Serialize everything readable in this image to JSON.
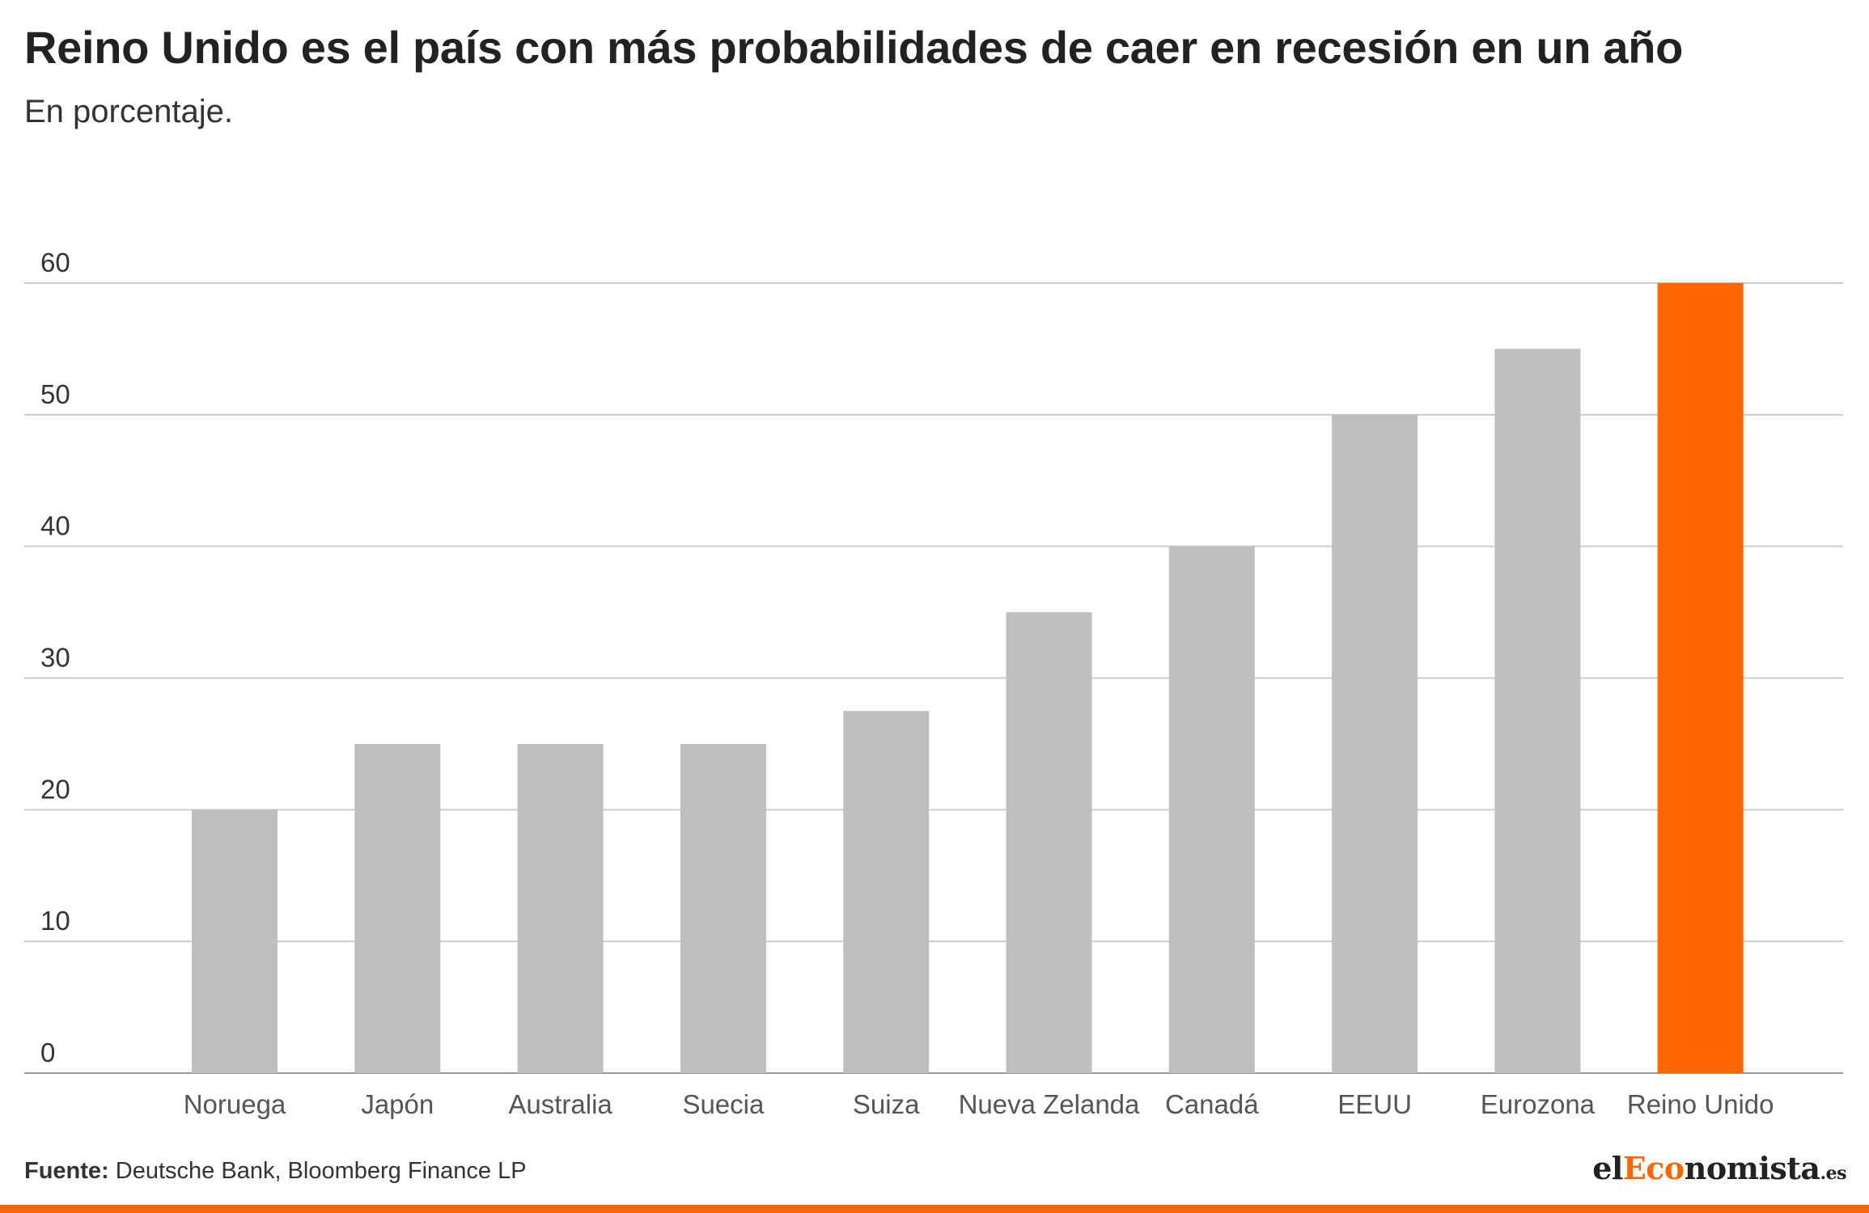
{
  "header": {
    "title": "Reino Unido es el país con más probabilidades de caer en recesión en un año",
    "subtitle": "En porcentaje."
  },
  "chart_data": {
    "type": "bar",
    "categories": [
      "Noruega",
      "Japón",
      "Australia",
      "Suecia",
      "Suiza",
      "Nueva Zelanda",
      "Canadá",
      "EEUU",
      "Eurozona",
      "Reino Unido"
    ],
    "values": [
      20,
      25,
      25,
      25,
      27.5,
      35,
      40,
      50,
      55,
      60
    ],
    "title": "Reino Unido es el país con más probabilidades de caer en recesión en un año",
    "subtitle": "En porcentaje.",
    "xlabel": "",
    "ylabel": "",
    "ylim": [
      0,
      60
    ],
    "yticks": [
      0,
      10,
      20,
      30,
      40,
      50,
      60
    ],
    "grid": true,
    "colors": {
      "default": "#bebebe",
      "highlight": "#ff6600",
      "highlight_category": "Reino Unido",
      "grid": "#cccccc",
      "axis_text": "#333333",
      "category_text": "#555555"
    }
  },
  "footer": {
    "source_label": "Fuente:",
    "source_text": " Deutsche Bank, Bloomberg Finance LP",
    "logo_el": "el",
    "logo_accent": "Eco",
    "logo_rest": "nomista",
    "logo_tld": ".es"
  }
}
